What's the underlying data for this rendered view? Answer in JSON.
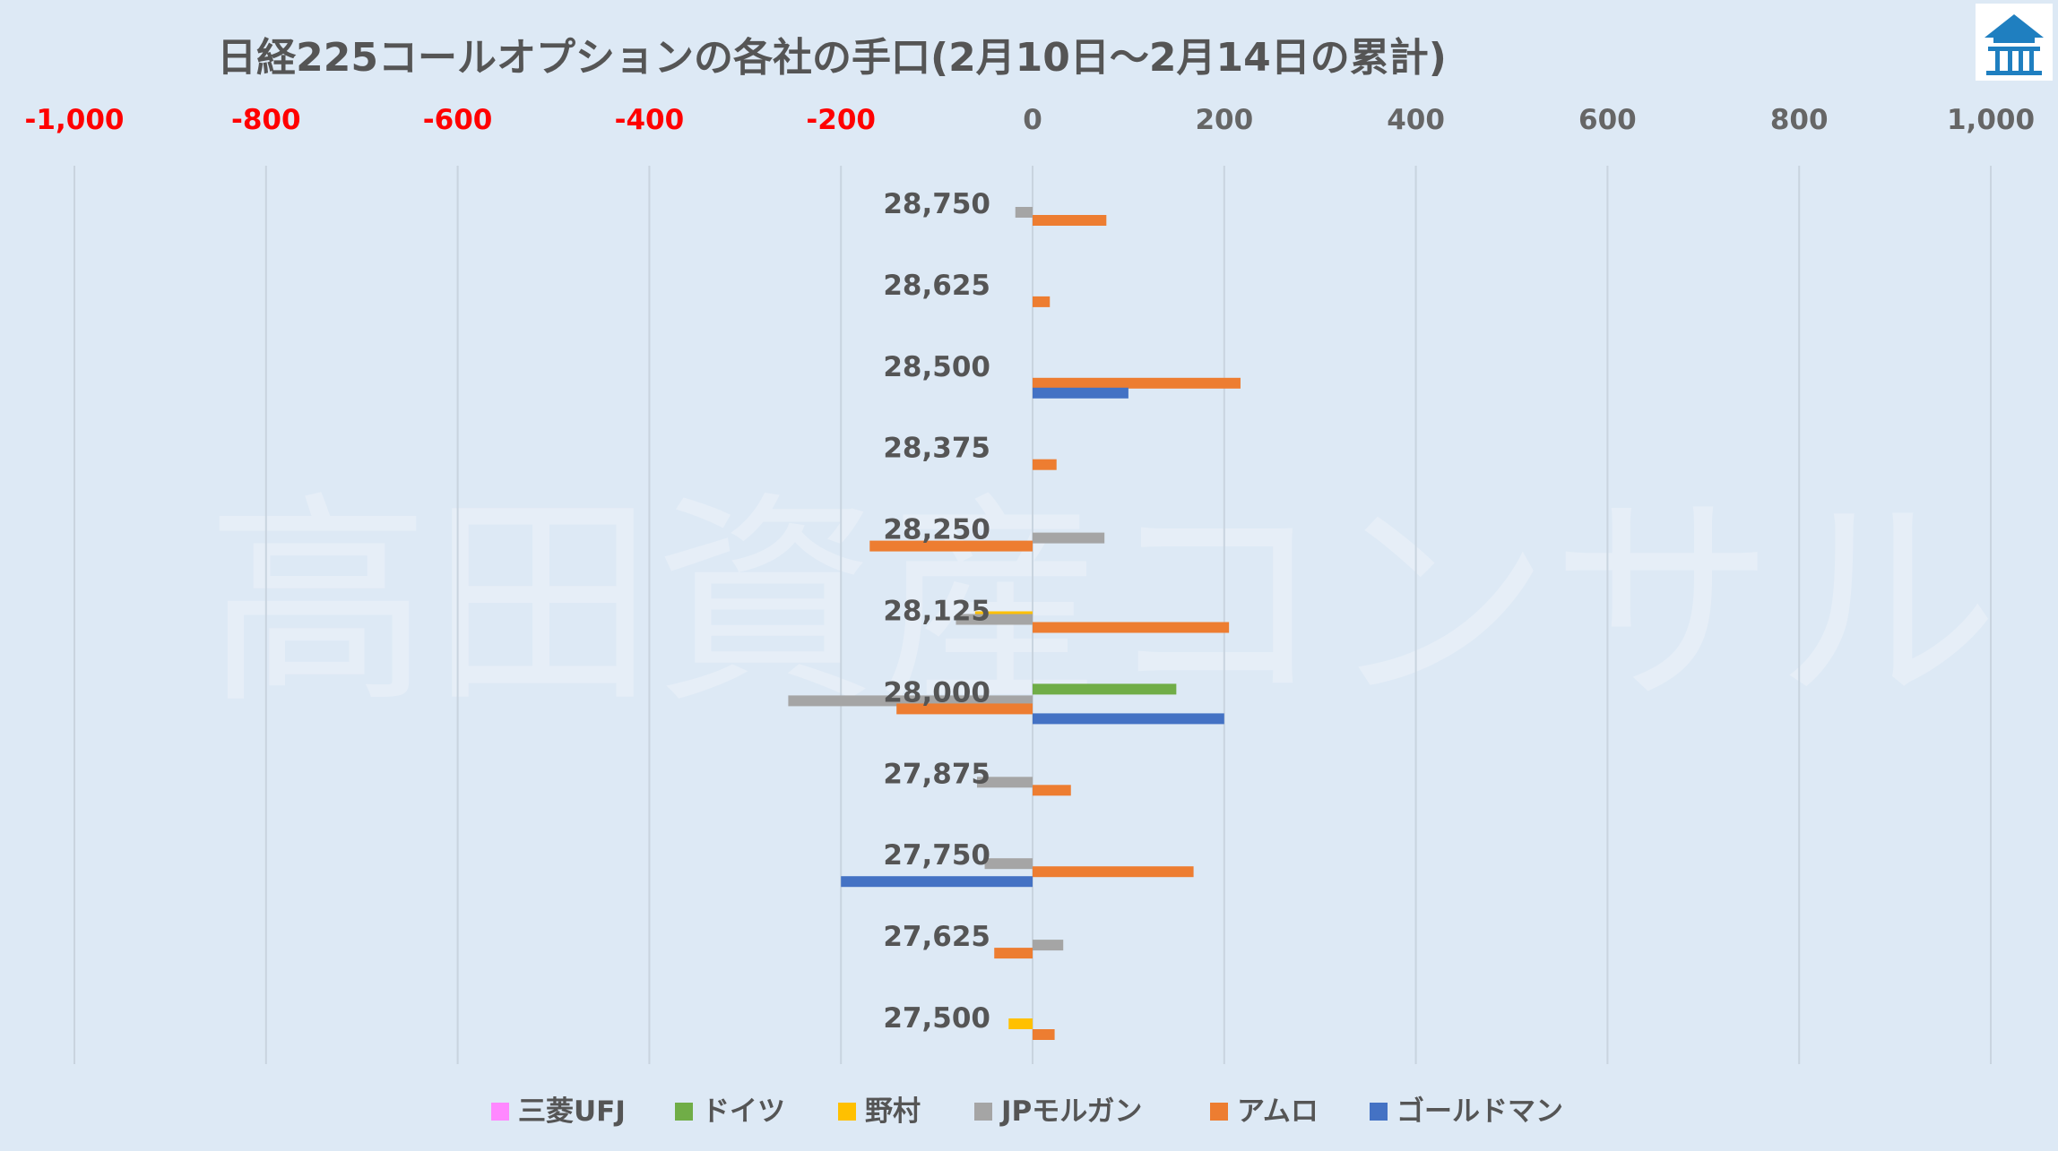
{
  "watermark": "高田資産コンサル",
  "chart_data": {
    "type": "bar",
    "orientation": "horizontal",
    "title": "日経225コールオプションの各社の手口(2月10日～2月14日の累計)",
    "xlim": [
      -1000,
      1000
    ],
    "x_ticks": [
      -1000,
      -800,
      -600,
      -400,
      -200,
      0,
      200,
      400,
      600,
      800,
      1000
    ],
    "x_tick_labels": [
      "-1,000",
      "-800",
      "-600",
      "-400",
      "-200",
      "0",
      "200",
      "400",
      "600",
      "800",
      "1,000"
    ],
    "negative_tick_color": "#ff0000",
    "positive_tick_color": "#666666",
    "grid": true,
    "legend_position": "bottom",
    "categories": [
      "28,750",
      "28,625",
      "28,500",
      "28,375",
      "28,250",
      "28,125",
      "28,000",
      "27,875",
      "27,750",
      "27,625",
      "27,500"
    ],
    "series": [
      {
        "name": "三菱UFJ",
        "color": "#ff88ff",
        "values": [
          0,
          0,
          0,
          0,
          0,
          0,
          0,
          0,
          0,
          0,
          0
        ]
      },
      {
        "name": "ドイツ",
        "color": "#70ad47",
        "values": [
          0,
          0,
          0,
          0,
          0,
          0,
          150,
          0,
          0,
          0,
          0
        ]
      },
      {
        "name": "野村",
        "color": "#ffc000",
        "values": [
          0,
          0,
          0,
          0,
          0,
          -60,
          0,
          0,
          0,
          0,
          -25
        ]
      },
      {
        "name": "JPモルガン",
        "color": "#a5a5a5",
        "values": [
          -18,
          0,
          0,
          0,
          75,
          -80,
          -255,
          -58,
          -50,
          32,
          0
        ]
      },
      {
        "name": "アムロ",
        "color": "#ed7d31",
        "values": [
          77,
          18,
          217,
          25,
          -170,
          205,
          -142,
          40,
          168,
          -40,
          23
        ]
      },
      {
        "name": "ゴールドマン",
        "color": "#4472c4",
        "values": [
          0,
          0,
          100,
          0,
          0,
          0,
          200,
          0,
          -200,
          0,
          0
        ]
      }
    ]
  }
}
